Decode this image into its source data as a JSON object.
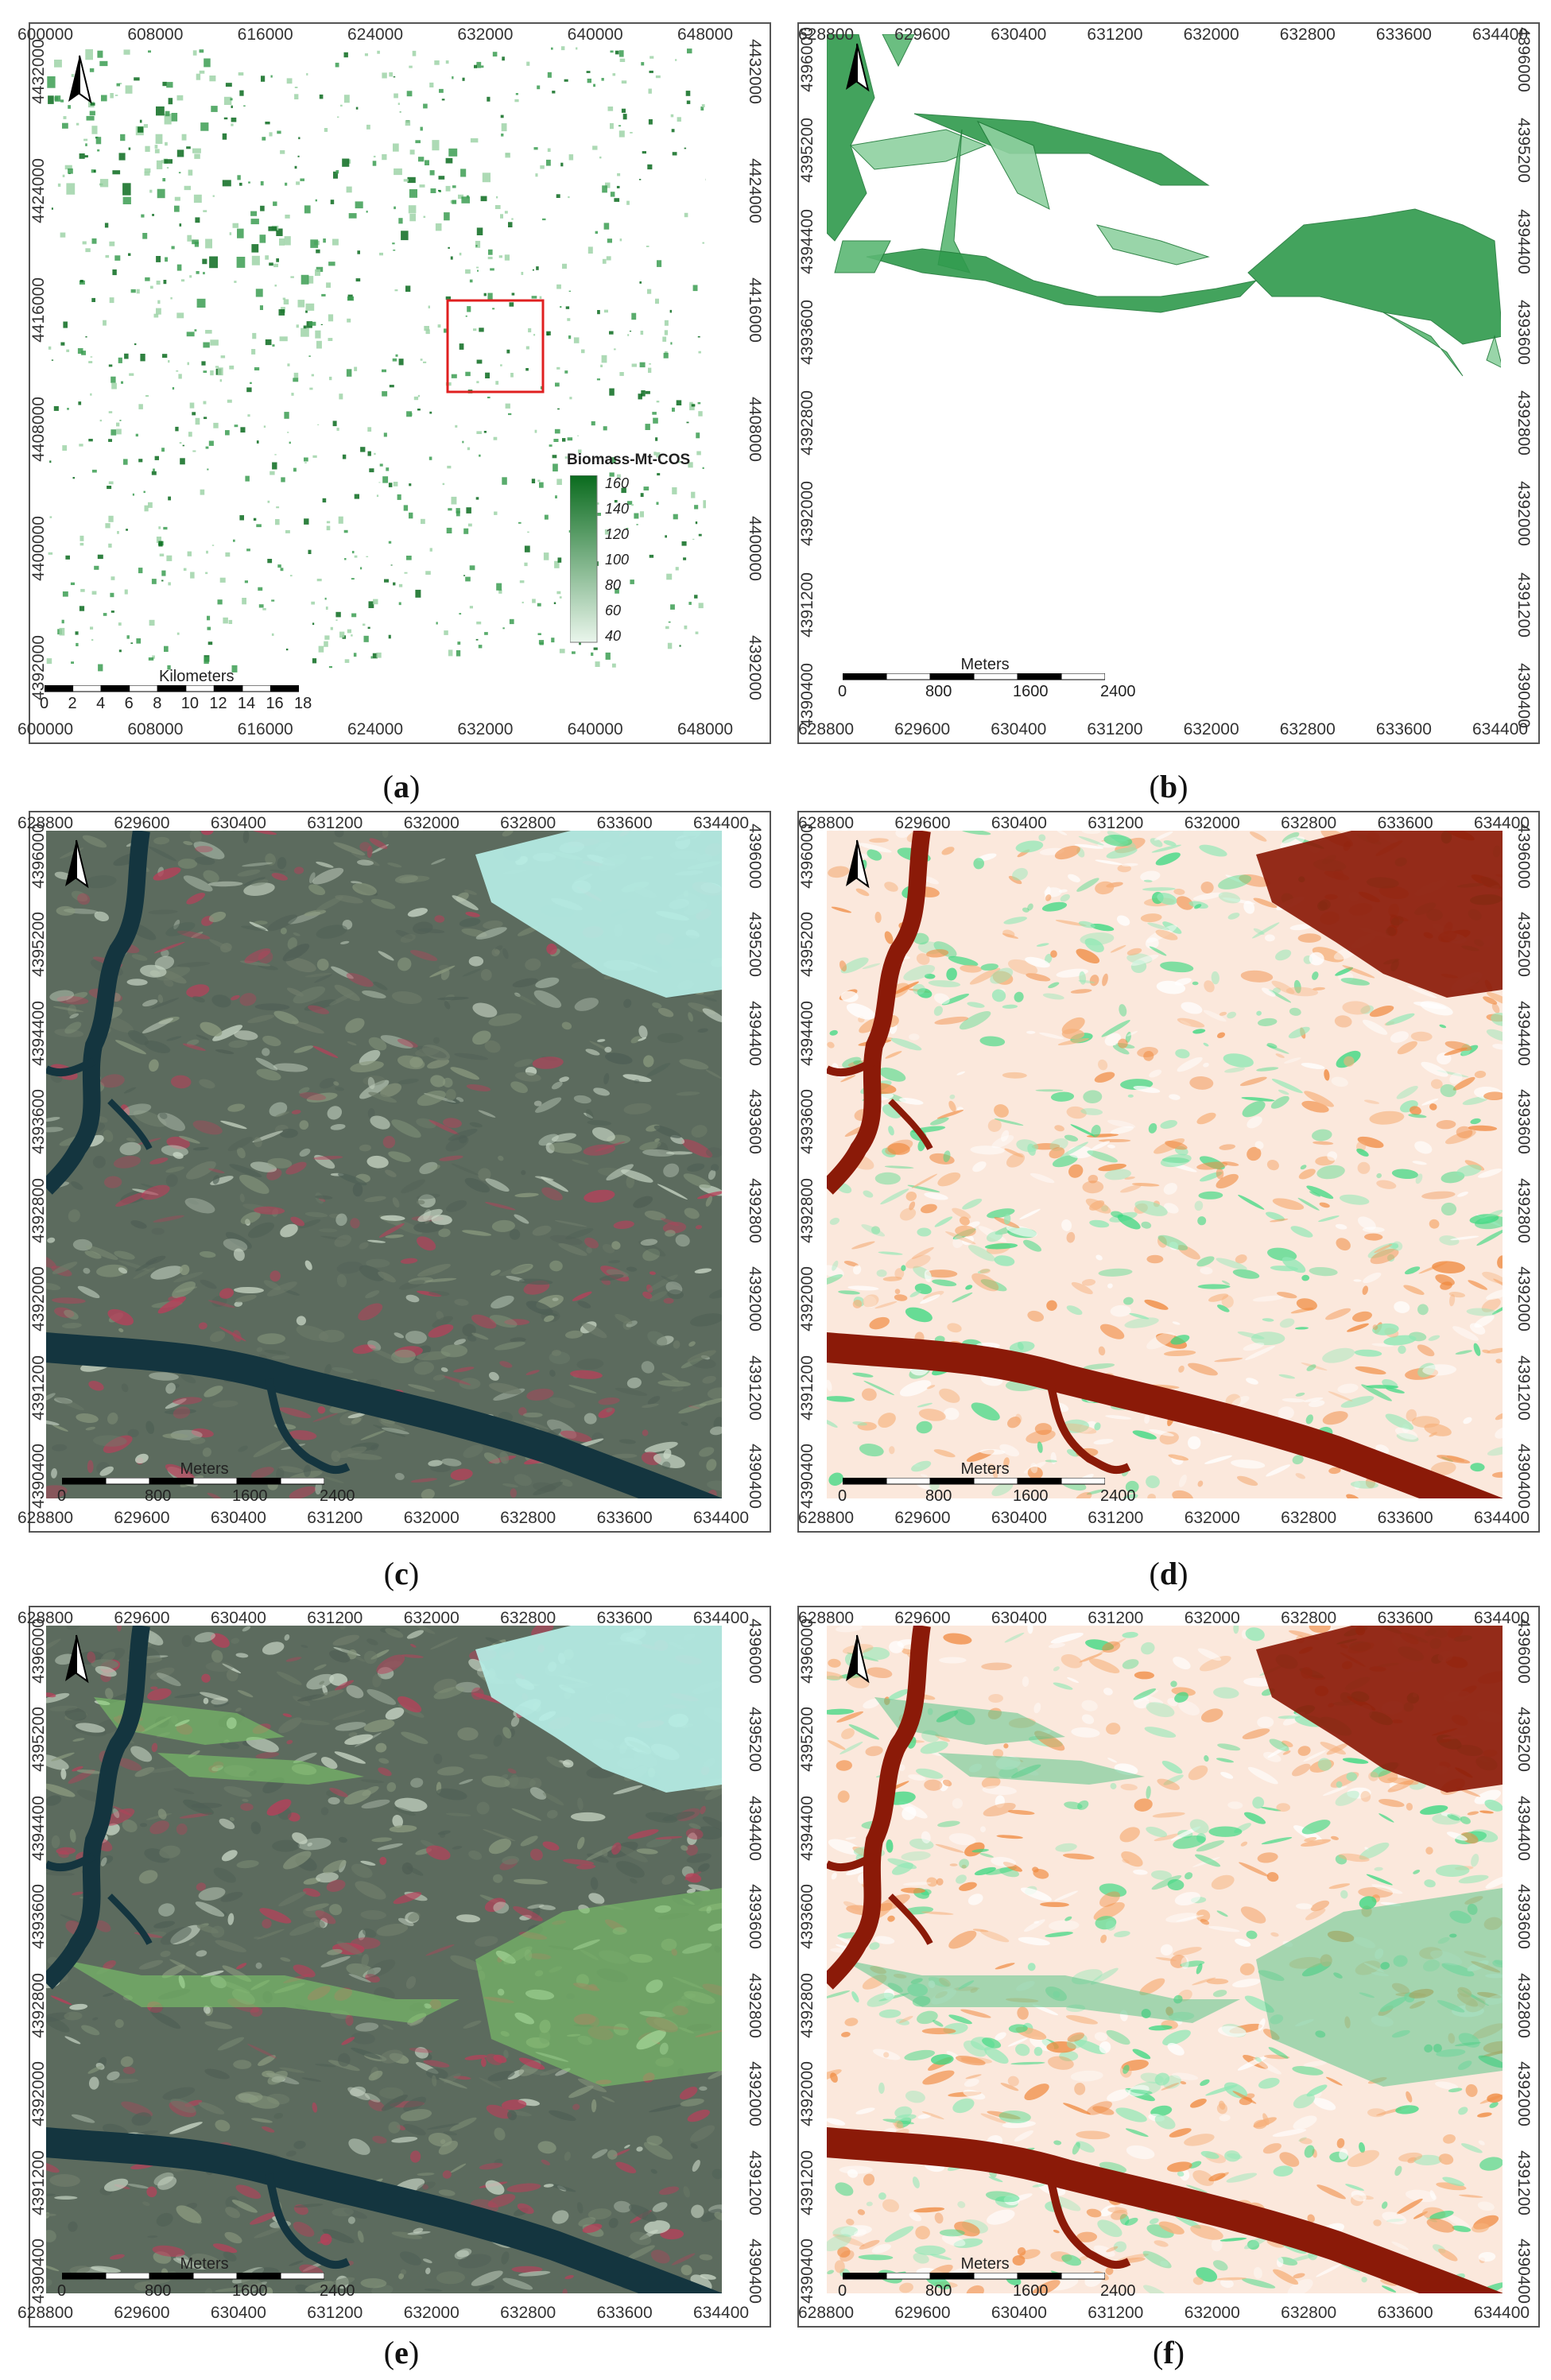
{
  "panels": [
    {
      "id": "a",
      "caption": "a",
      "x_ticks": [
        "600000",
        "608000",
        "616000",
        "624000",
        "632000",
        "640000",
        "648000"
      ],
      "y_ticks": [
        "4432000",
        "4424000",
        "4416000",
        "4408000",
        "4400000",
        "4392000"
      ],
      "scale_title": "Kilometers",
      "scale_labels": [
        "0",
        "2",
        "4",
        "6",
        "8",
        "10",
        "12",
        "14",
        "16",
        "18"
      ],
      "legend": {
        "title": "Biomass-Mt-COS",
        "values": [
          "160",
          "140",
          "120",
          "100",
          "80",
          "60",
          "40"
        ]
      }
    },
    {
      "id": "b",
      "caption": "b",
      "x_ticks": [
        "628800",
        "629600",
        "630400",
        "631200",
        "632000",
        "632800",
        "633600",
        "634400"
      ],
      "y_ticks": [
        "4396000",
        "4395200",
        "4394400",
        "4393600",
        "4392800",
        "4392000",
        "4391200",
        "4390400"
      ],
      "scale_title": "Meters",
      "scale_labels": [
        "0",
        "800",
        "1600",
        "2400"
      ]
    },
    {
      "id": "c",
      "caption": "c",
      "x_ticks": [
        "628800",
        "629600",
        "630400",
        "631200",
        "632000",
        "632800",
        "633600",
        "634400"
      ],
      "y_ticks": [
        "4396000",
        "4395200",
        "4394400",
        "4393600",
        "4392800",
        "4392000",
        "4391200",
        "4390400"
      ],
      "scale_title": "Meters",
      "scale_labels": [
        "0",
        "800",
        "1600",
        "2400"
      ]
    },
    {
      "id": "d",
      "caption": "d",
      "x_ticks": [
        "628800",
        "629600",
        "630400",
        "631200",
        "632000",
        "632800",
        "633600",
        "634400"
      ],
      "y_ticks": [
        "4396000",
        "4395200",
        "4394400",
        "4393600",
        "4392800",
        "4392000",
        "4391200",
        "4390400"
      ],
      "scale_title": "Meters",
      "scale_labels": [
        "0",
        "800",
        "1600",
        "2400"
      ]
    },
    {
      "id": "e",
      "caption": "e",
      "x_ticks": [
        "628800",
        "629600",
        "630400",
        "631200",
        "632000",
        "632800",
        "633600",
        "634400"
      ],
      "y_ticks": [
        "4396000",
        "4395200",
        "4394400",
        "4393600",
        "4392800",
        "4392000",
        "4391200",
        "4390400"
      ],
      "scale_title": "Meters",
      "scale_labels": [
        "0",
        "800",
        "1600",
        "2400"
      ]
    },
    {
      "id": "f",
      "caption": "f",
      "x_ticks": [
        "628800",
        "629600",
        "630400",
        "631200",
        "632000",
        "632800",
        "633600",
        "634400"
      ],
      "y_ticks": [
        "4396000",
        "4395200",
        "4394400",
        "4393600",
        "4392800",
        "4392000",
        "4391200",
        "4390400"
      ],
      "scale_title": "Meters",
      "scale_labels": [
        "0",
        "800",
        "1600",
        "2400"
      ]
    }
  ],
  "colors": {
    "biomass_high": "#0a6b1e",
    "biomass_low": "#eaf6ec",
    "false_color_bg": "#5c6b5e",
    "false_color_red": "#b8405a",
    "water_dark": "#14353f",
    "burn_light": "#b6eee6",
    "index_orange": "#f08a40",
    "index_darkred": "#8b1a08",
    "index_green": "#3ad880",
    "index_pale": "#fbe8dc",
    "highlight_box": "#e02020"
  },
  "icons": {
    "north_arrow": "north-arrow-icon"
  }
}
